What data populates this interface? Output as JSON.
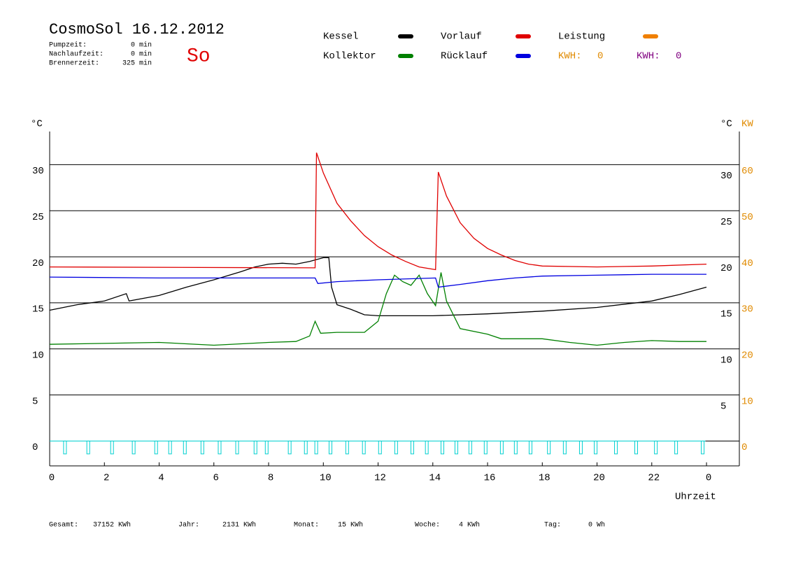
{
  "chart_data": {
    "type": "line",
    "title": "CosmoSol 16.12.2012",
    "day": "So",
    "info": [
      {
        "label": "Pumpzeit:",
        "value": "0 min"
      },
      {
        "label": "Nachlaufzeit:",
        "value": "0 min"
      },
      {
        "label": "Brennerzeit:",
        "value": "325 min"
      }
    ],
    "kwh": [
      {
        "label": "KWH:",
        "value": 0,
        "color": "#e08a00"
      },
      {
        "label": "KWH:",
        "value": 0,
        "color": "#800080"
      }
    ],
    "y_label": "°C",
    "y_right_label": "°C",
    "y2_label": "KW",
    "x_label": "Uhrzeit",
    "xlim": [
      0,
      25.2
    ],
    "xticks": [
      0,
      2,
      4,
      6,
      8,
      10,
      12,
      14,
      16,
      18,
      20,
      22,
      {
        "value": 24,
        "label": "0"
      }
    ],
    "ylim": [
      -2.7,
      33.6
    ],
    "yticks": [
      0,
      5,
      10,
      15,
      20,
      25,
      30
    ],
    "y_right_ticks": [
      5,
      10,
      15,
      20,
      25,
      30
    ],
    "y2lim": [
      -5.4,
      67.2
    ],
    "y2ticks": [
      0,
      10,
      20,
      30,
      40,
      50,
      60
    ],
    "grid": true,
    "series": [
      {
        "name": "Kessel",
        "color": "#000000",
        "x": [
          0,
          1,
          2,
          2.8,
          2.9,
          4,
          5,
          6,
          7,
          7.5,
          8,
          8.5,
          9,
          9.5,
          10,
          10.2,
          10.3,
          10.5,
          11,
          11.5,
          12,
          14,
          16,
          18,
          20,
          22,
          23,
          24
        ],
        "values": [
          14.2,
          14.8,
          15.2,
          16.0,
          15.2,
          15.8,
          16.7,
          17.5,
          18.4,
          18.9,
          19.2,
          19.3,
          19.2,
          19.5,
          19.9,
          19.9,
          16.7,
          14.8,
          14.3,
          13.7,
          13.6,
          13.6,
          13.8,
          14.1,
          14.5,
          15.2,
          15.9,
          16.7
        ]
      },
      {
        "name": "Vorlauf",
        "color": "#e00000",
        "x": [
          0,
          9.7,
          9.75,
          10,
          10.5,
          11,
          11.5,
          12,
          12.5,
          13,
          13.5,
          14.1,
          14.2,
          14.5,
          15,
          15.5,
          16,
          16.5,
          17,
          17.5,
          18,
          20,
          22,
          24
        ],
        "values": [
          18.9,
          18.8,
          31.3,
          29.1,
          25.8,
          23.9,
          22.3,
          21.1,
          20.2,
          19.5,
          18.9,
          18.6,
          29.2,
          26.6,
          23.7,
          22.0,
          20.9,
          20.2,
          19.6,
          19.2,
          19.0,
          18.9,
          19.0,
          19.2
        ]
      },
      {
        "name": "Leistung",
        "color": "#f08000",
        "axis": "y2",
        "x": [],
        "values": []
      },
      {
        "name": "Kollektor",
        "color": "#008000",
        "x": [
          0,
          2,
          4,
          6,
          8,
          9,
          9.5,
          9.7,
          9.9,
          10.5,
          11,
          11.5,
          12,
          12.3,
          12.6,
          12.9,
          13.2,
          13.5,
          13.8,
          14.1,
          14.3,
          14.5,
          15,
          16,
          16.5,
          17,
          18,
          19,
          20,
          21,
          22,
          23,
          24
        ],
        "values": [
          10.5,
          10.6,
          10.7,
          10.4,
          10.7,
          10.8,
          11.4,
          13.0,
          11.7,
          11.8,
          11.8,
          11.8,
          13.0,
          16.0,
          18.0,
          17.3,
          16.9,
          18.0,
          16.0,
          14.7,
          18.3,
          15.2,
          12.2,
          11.6,
          11.1,
          11.1,
          11.1,
          10.7,
          10.4,
          10.7,
          10.9,
          10.8,
          10.8
        ]
      },
      {
        "name": "Rücklauf",
        "color": "#0000e0",
        "x": [
          0,
          4,
          8,
          9.7,
          9.8,
          10.5,
          12,
          14.1,
          14.2,
          15,
          16,
          17,
          18,
          20,
          22,
          24
        ],
        "values": [
          17.8,
          17.7,
          17.7,
          17.7,
          17.1,
          17.3,
          17.5,
          17.7,
          16.7,
          17.0,
          17.4,
          17.7,
          17.9,
          18.0,
          18.1,
          18.1
        ]
      }
    ],
    "pulses": {
      "color": "#00d0d0",
      "x": [
        0.56,
        1.41,
        2.28,
        3.07,
        3.89,
        4.4,
        4.94,
        5.58,
        6.21,
        6.85,
        7.52,
        7.93,
        8.77,
        9.36,
        9.74,
        10.26,
        10.87,
        11.48,
        12.07,
        12.66,
        13.25,
        13.78,
        14.35,
        14.86,
        15.37,
        15.93,
        16.52,
        17.03,
        17.57,
        18.24,
        18.82,
        19.41,
        19.95,
        20.69,
        21.43,
        22.15,
        22.89,
        23.86
      ],
      "values": [
        -1.4,
        -1.4,
        -1.4,
        -1.4,
        -1.4,
        -1.4,
        -1.4,
        -1.4,
        -1.4,
        -1.4,
        -1.4,
        -1.4,
        -1.4,
        -1.4,
        -1.4,
        -1.4,
        -1.4,
        -1.4,
        -1.4,
        -1.4,
        -1.4,
        -1.4,
        -1.4,
        -1.4,
        -1.4,
        -1.4,
        -1.4,
        -1.4,
        -1.4,
        -1.4,
        -1.4,
        -1.4,
        -1.4,
        -1.4,
        -1.4,
        -1.4,
        -1.4,
        -1.4
      ]
    },
    "footer": [
      {
        "label": "Gesamt:",
        "value": "37152 KWh"
      },
      {
        "label": "Jahr:",
        "value": "2131 KWh"
      },
      {
        "label": "Monat:",
        "value": "15 KWh"
      },
      {
        "label": "Woche:",
        "value": "4 KWh"
      },
      {
        "label": "Tag:",
        "value": "0 Wh"
      }
    ]
  }
}
